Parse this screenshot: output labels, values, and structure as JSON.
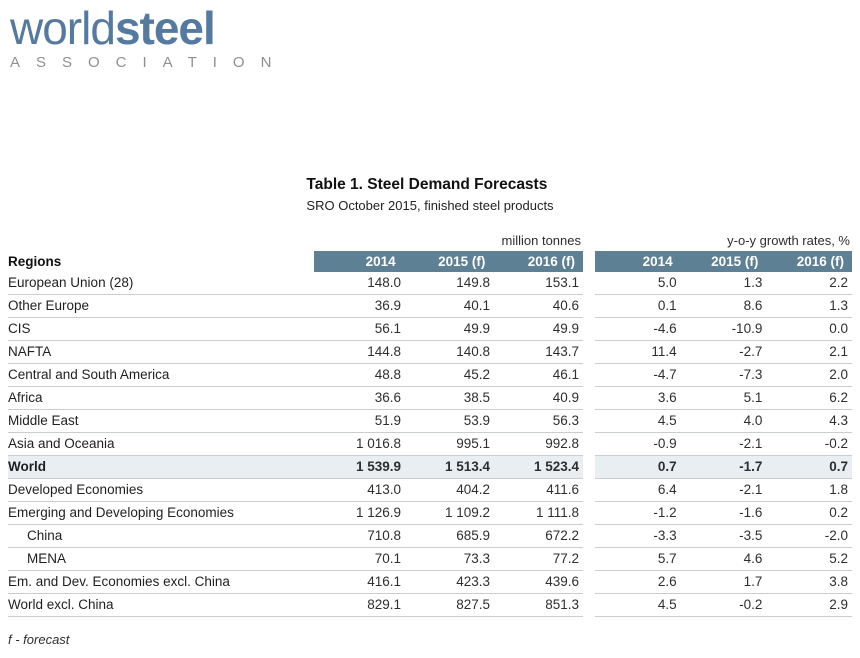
{
  "logo": {
    "world": "world",
    "steel": "steel",
    "association": "ASSOCIATION"
  },
  "title": "Table 1. Steel Demand Forecasts",
  "subtitle": "SRO October 2015, finished steel products",
  "table": {
    "regions_header": "Regions",
    "group1_label": "million tonnes",
    "group2_label": "y-o-y growth rates, %",
    "year_headers": [
      "2014",
      "2015 (f)",
      "2016 (f)"
    ],
    "rows": [
      {
        "region": "European Union (28)",
        "mt": [
          "148.0",
          "149.8",
          "153.1"
        ],
        "growth": [
          "5.0",
          "1.3",
          "2.2"
        ],
        "bold": false,
        "indent": false
      },
      {
        "region": "Other Europe",
        "mt": [
          "36.9",
          "40.1",
          "40.6"
        ],
        "growth": [
          "0.1",
          "8.6",
          "1.3"
        ],
        "bold": false,
        "indent": false
      },
      {
        "region": "CIS",
        "mt": [
          "56.1",
          "49.9",
          "49.9"
        ],
        "growth": [
          "-4.6",
          "-10.9",
          "0.0"
        ],
        "bold": false,
        "indent": false
      },
      {
        "region": "NAFTA",
        "mt": [
          "144.8",
          "140.8",
          "143.7"
        ],
        "growth": [
          "11.4",
          "-2.7",
          "2.1"
        ],
        "bold": false,
        "indent": false
      },
      {
        "region": "Central and South America",
        "mt": [
          "48.8",
          "45.2",
          "46.1"
        ],
        "growth": [
          "-4.7",
          "-7.3",
          "2.0"
        ],
        "bold": false,
        "indent": false
      },
      {
        "region": "Africa",
        "mt": [
          "36.6",
          "38.5",
          "40.9"
        ],
        "growth": [
          "3.6",
          "5.1",
          "6.2"
        ],
        "bold": false,
        "indent": false
      },
      {
        "region": "Middle East",
        "mt": [
          "51.9",
          "53.9",
          "56.3"
        ],
        "growth": [
          "4.5",
          "4.0",
          "4.3"
        ],
        "bold": false,
        "indent": false
      },
      {
        "region": "Asia and Oceania",
        "mt": [
          "1 016.8",
          "995.1",
          "992.8"
        ],
        "growth": [
          "-0.9",
          "-2.1",
          "-0.2"
        ],
        "bold": false,
        "indent": false
      },
      {
        "region": "World",
        "mt": [
          "1 539.9",
          "1 513.4",
          "1 523.4"
        ],
        "growth": [
          "0.7",
          "-1.7",
          "0.7"
        ],
        "bold": true,
        "indent": false
      },
      {
        "region": "Developed Economies",
        "mt": [
          "413.0",
          "404.2",
          "411.6"
        ],
        "growth": [
          "6.4",
          "-2.1",
          "1.8"
        ],
        "bold": false,
        "indent": false
      },
      {
        "region": "Emerging and Developing Economies",
        "mt": [
          "1 126.9",
          "1 109.2",
          "1 111.8"
        ],
        "growth": [
          "-1.2",
          "-1.6",
          "0.2"
        ],
        "bold": false,
        "indent": false
      },
      {
        "region": "China",
        "mt": [
          "710.8",
          "685.9",
          "672.2"
        ],
        "growth": [
          "-3.3",
          "-3.5",
          "-2.0"
        ],
        "bold": false,
        "indent": true
      },
      {
        "region": "MENA",
        "mt": [
          "70.1",
          "73.3",
          "77.2"
        ],
        "growth": [
          "5.7",
          "4.6",
          "5.2"
        ],
        "bold": false,
        "indent": true
      },
      {
        "region": "Em. and Dev. Economies excl. China",
        "mt": [
          "416.1",
          "423.3",
          "439.6"
        ],
        "growth": [
          "2.6",
          "1.7",
          "3.8"
        ],
        "bold": false,
        "indent": false
      },
      {
        "region": "World excl. China",
        "mt": [
          "829.1",
          "827.5",
          "851.3"
        ],
        "growth": [
          "4.5",
          "-0.2",
          "2.9"
        ],
        "bold": false,
        "indent": false
      }
    ]
  },
  "footnote": "f - forecast",
  "colors": {
    "header_bg": "#5d8094",
    "highlight_bg": "#e9eef2",
    "logo_blue": "#557a9f",
    "association_gray": "#8f8f8f",
    "row_border": "#c8cdd2"
  }
}
